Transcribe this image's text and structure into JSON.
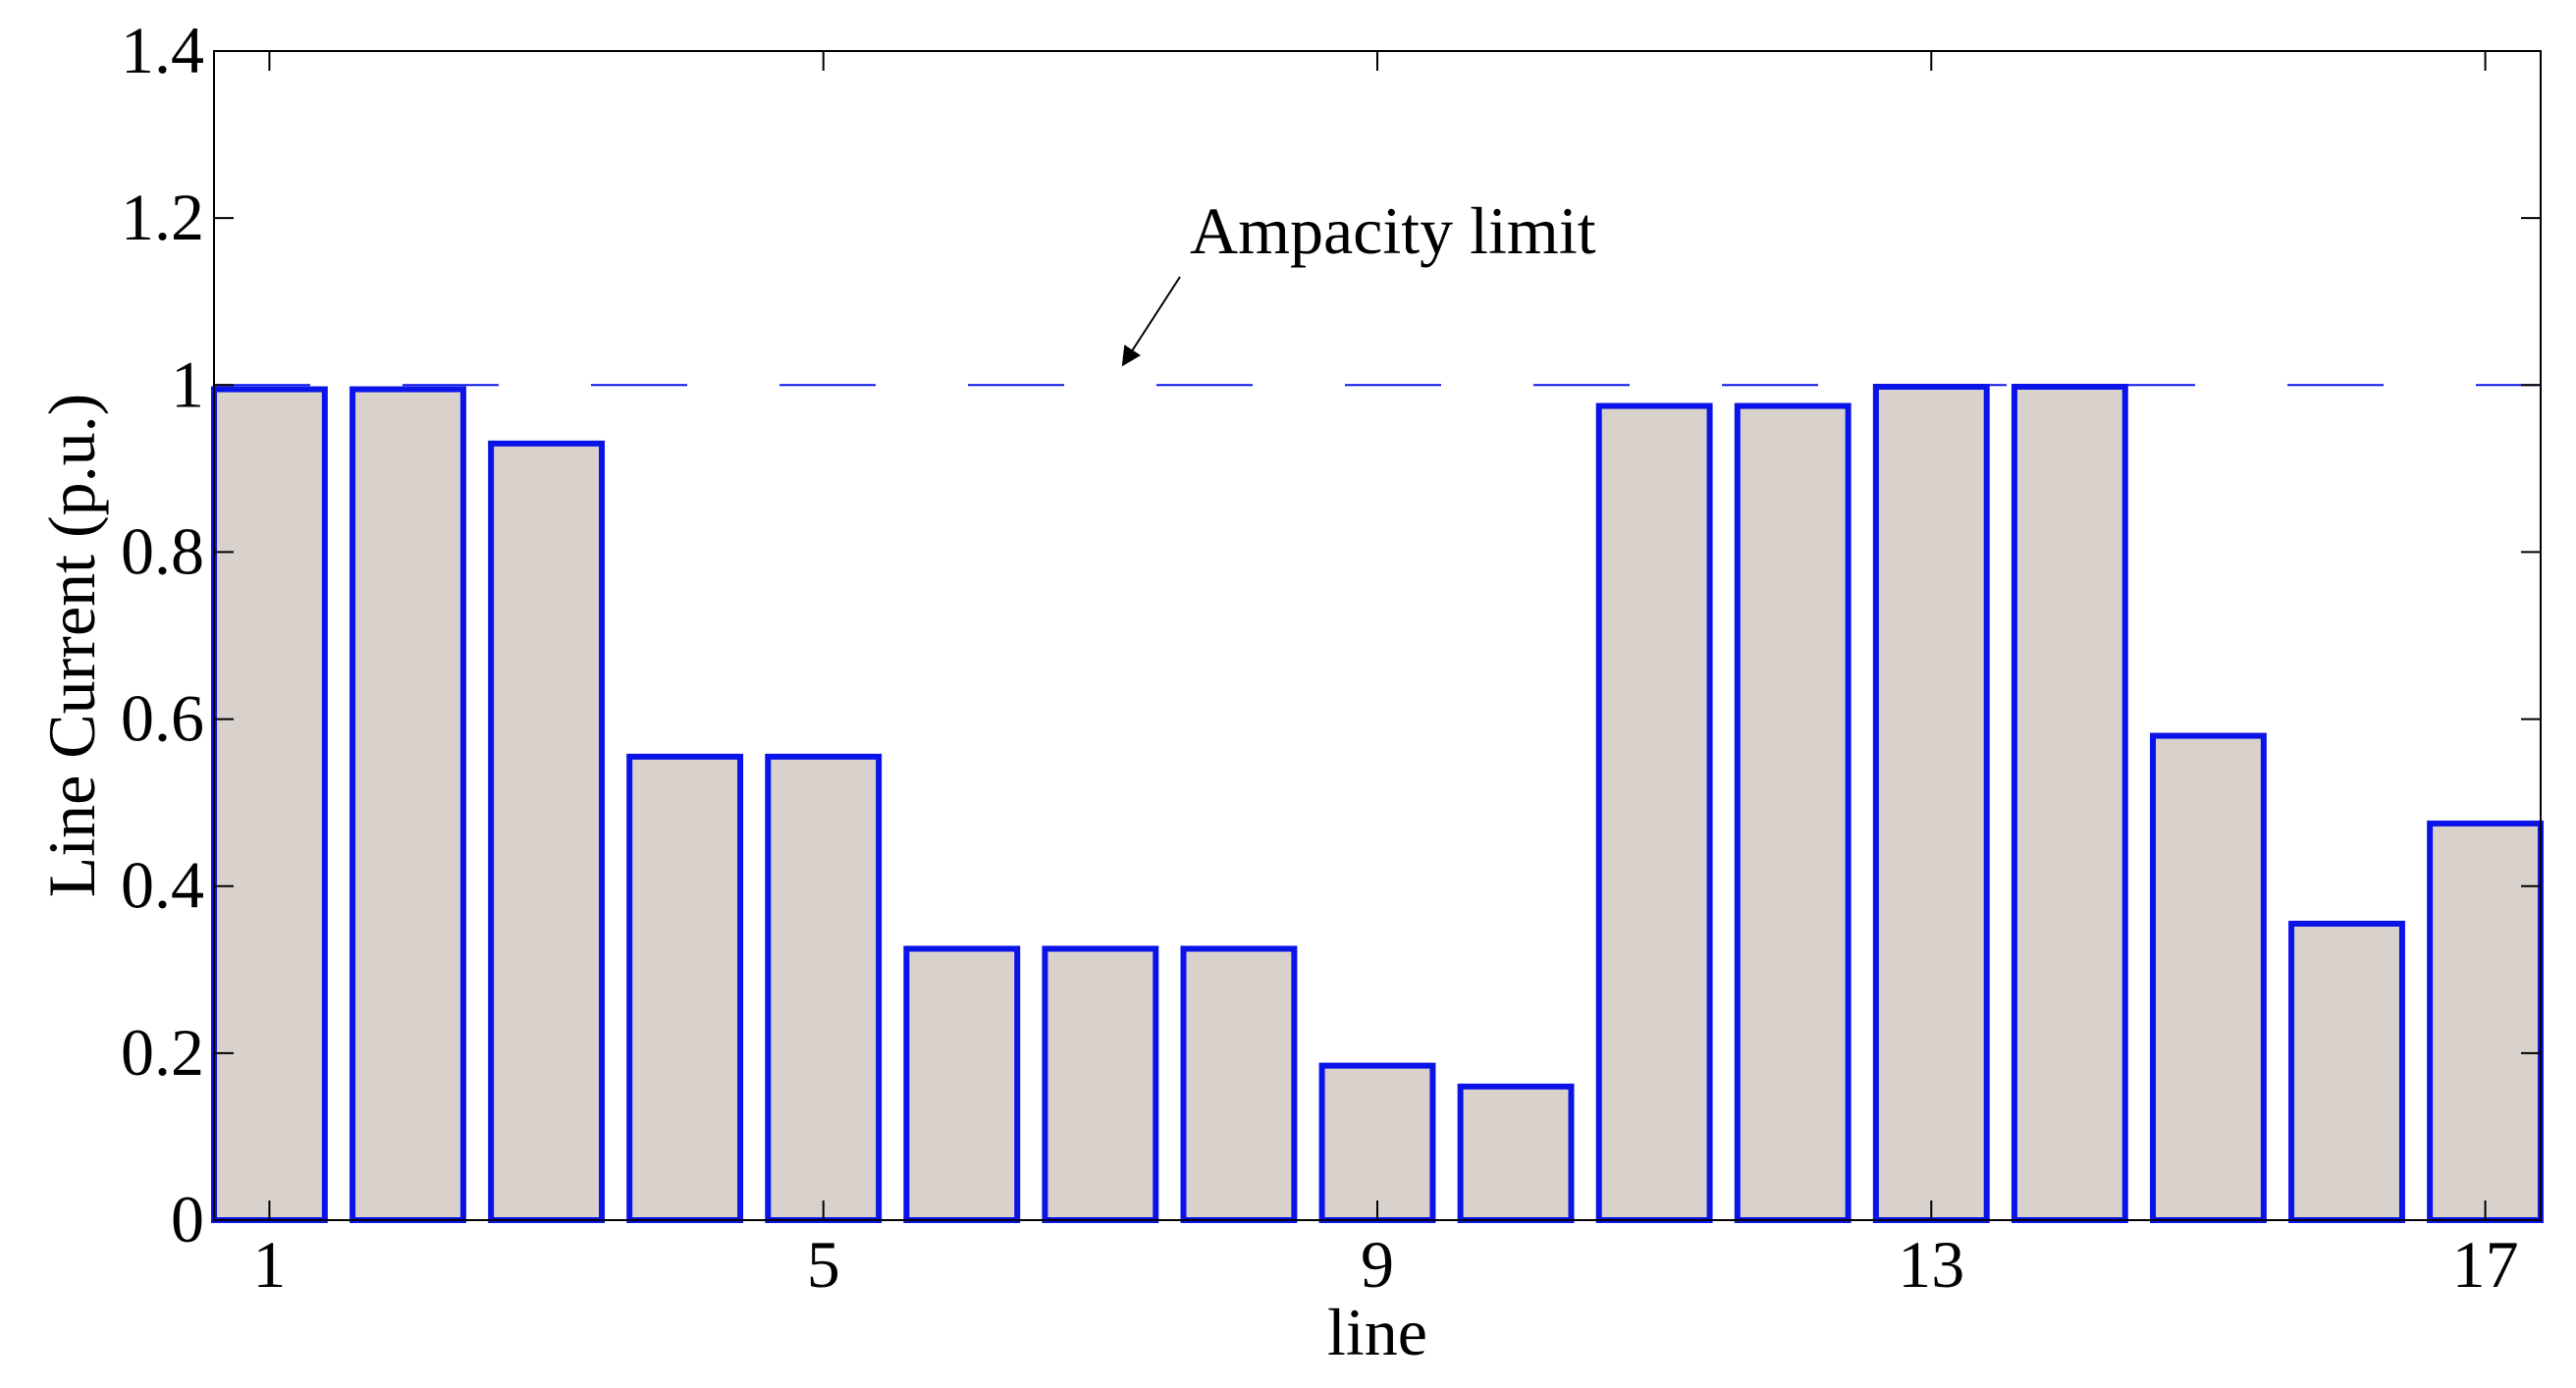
{
  "chart_data": {
    "type": "bar",
    "title": "",
    "xlabel": "line",
    "ylabel": "Line Current (p.u.)",
    "categories": [
      "1",
      "2",
      "3",
      "4",
      "5",
      "6",
      "7",
      "8",
      "9",
      "10",
      "11",
      "12",
      "13",
      "14",
      "15",
      "16",
      "17"
    ],
    "values": [
      0.995,
      0.995,
      0.93,
      0.555,
      0.555,
      0.325,
      0.325,
      0.325,
      0.185,
      0.16,
      0.975,
      0.975,
      0.998,
      0.998,
      0.58,
      0.355,
      0.475
    ],
    "xticks": [
      "1",
      "5",
      "9",
      "13",
      "17"
    ],
    "yticks": [
      "0",
      "0.2",
      "0.4",
      "0.6",
      "0.8",
      "1",
      "1.2",
      "1.4"
    ],
    "ylim": [
      0,
      1.4
    ],
    "xlim": [
      0.6,
      17.4
    ],
    "grid": false,
    "bar_fill_color": "#d9d2cc",
    "bar_edge_color": "#0b14e8",
    "limit_line": {
      "value": 1.0,
      "color": "#0b14e8",
      "style": "dashed"
    },
    "annotation": {
      "text": "Ampacity limit"
    }
  }
}
